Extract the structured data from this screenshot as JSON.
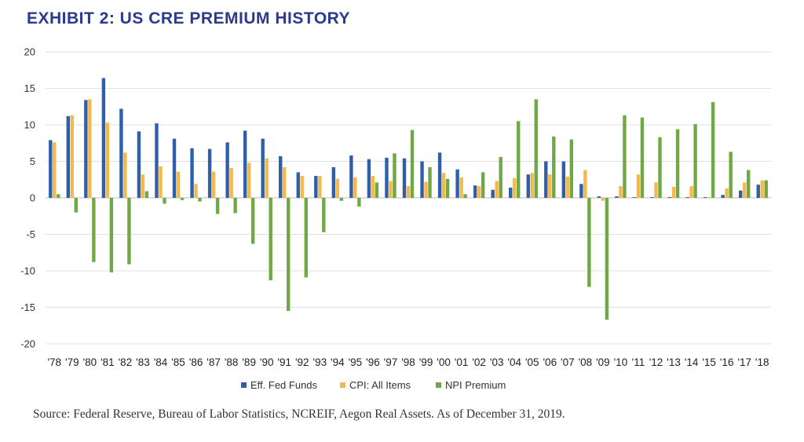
{
  "title": "EXHIBIT 2: US CRE PREMIUM HISTORY",
  "source": "Source: Federal Reserve, Bureau of Labor Statistics, NCREIF, Aegon Real Assets. As of December 31, 2019.",
  "chart_data": {
    "type": "bar",
    "categories": [
      "'78",
      "'79",
      "'80",
      "'81",
      "'82",
      "'83",
      "'84",
      "'85",
      "'86",
      "'87",
      "'88",
      "'89",
      "'90",
      "'91",
      "'92",
      "'93",
      "'94",
      "'95",
      "'96",
      "'97",
      "'98",
      "'99",
      "'00",
      "'01",
      "'02",
      "'03",
      "'04",
      "'05",
      "'06",
      "'07",
      "'08",
      "'09",
      "'10",
      "'11",
      "'12",
      "'13",
      "'14",
      "'15",
      "'16",
      "'17",
      "'18"
    ],
    "ylim": [
      -20,
      20
    ],
    "yticks": [
      20,
      15,
      10,
      5,
      0,
      -5,
      -10,
      -15,
      -20
    ],
    "legend_position": "bottom",
    "grid": true,
    "series": [
      {
        "name": "Eff. Fed Funds",
        "color": "#2e5fa8",
        "values": [
          7.9,
          11.2,
          13.4,
          16.4,
          12.2,
          9.1,
          10.2,
          8.1,
          6.8,
          6.7,
          7.6,
          9.2,
          8.1,
          5.7,
          3.5,
          3.0,
          4.2,
          5.8,
          5.3,
          5.5,
          5.4,
          5.0,
          6.2,
          3.9,
          1.7,
          1.1,
          1.4,
          3.2,
          5.0,
          5.0,
          1.9,
          0.2,
          0.2,
          0.1,
          0.1,
          0.1,
          0.1,
          0.1,
          0.4,
          1.0,
          1.8
        ]
      },
      {
        "name": "CPI: All Items",
        "color": "#f5b94a",
        "values": [
          7.6,
          11.3,
          13.5,
          10.3,
          6.2,
          3.2,
          4.3,
          3.6,
          1.9,
          3.6,
          4.1,
          4.8,
          5.4,
          4.2,
          3.0,
          3.0,
          2.6,
          2.8,
          3.0,
          2.3,
          1.6,
          2.2,
          3.4,
          2.8,
          1.6,
          2.3,
          2.7,
          3.4,
          3.2,
          2.9,
          3.8,
          -0.4,
          1.6,
          3.2,
          2.1,
          1.5,
          1.6,
          0.1,
          1.3,
          2.1,
          2.4
        ]
      },
      {
        "name": "NPI Premium",
        "color": "#70a845",
        "values": [
          0.5,
          -2.0,
          -8.8,
          -10.2,
          -9.1,
          0.9,
          -0.8,
          -0.3,
          -0.5,
          -2.2,
          -2.1,
          -6.3,
          -11.3,
          -15.5,
          -10.9,
          -4.7,
          -0.4,
          -1.2,
          2.1,
          6.1,
          9.3,
          4.2,
          2.6,
          0.5,
          3.5,
          5.6,
          10.5,
          13.5,
          8.4,
          8.0,
          -12.2,
          -16.7,
          11.3,
          11.0,
          8.3,
          9.4,
          10.1,
          13.1,
          6.3,
          3.8,
          2.4
        ]
      }
    ]
  }
}
